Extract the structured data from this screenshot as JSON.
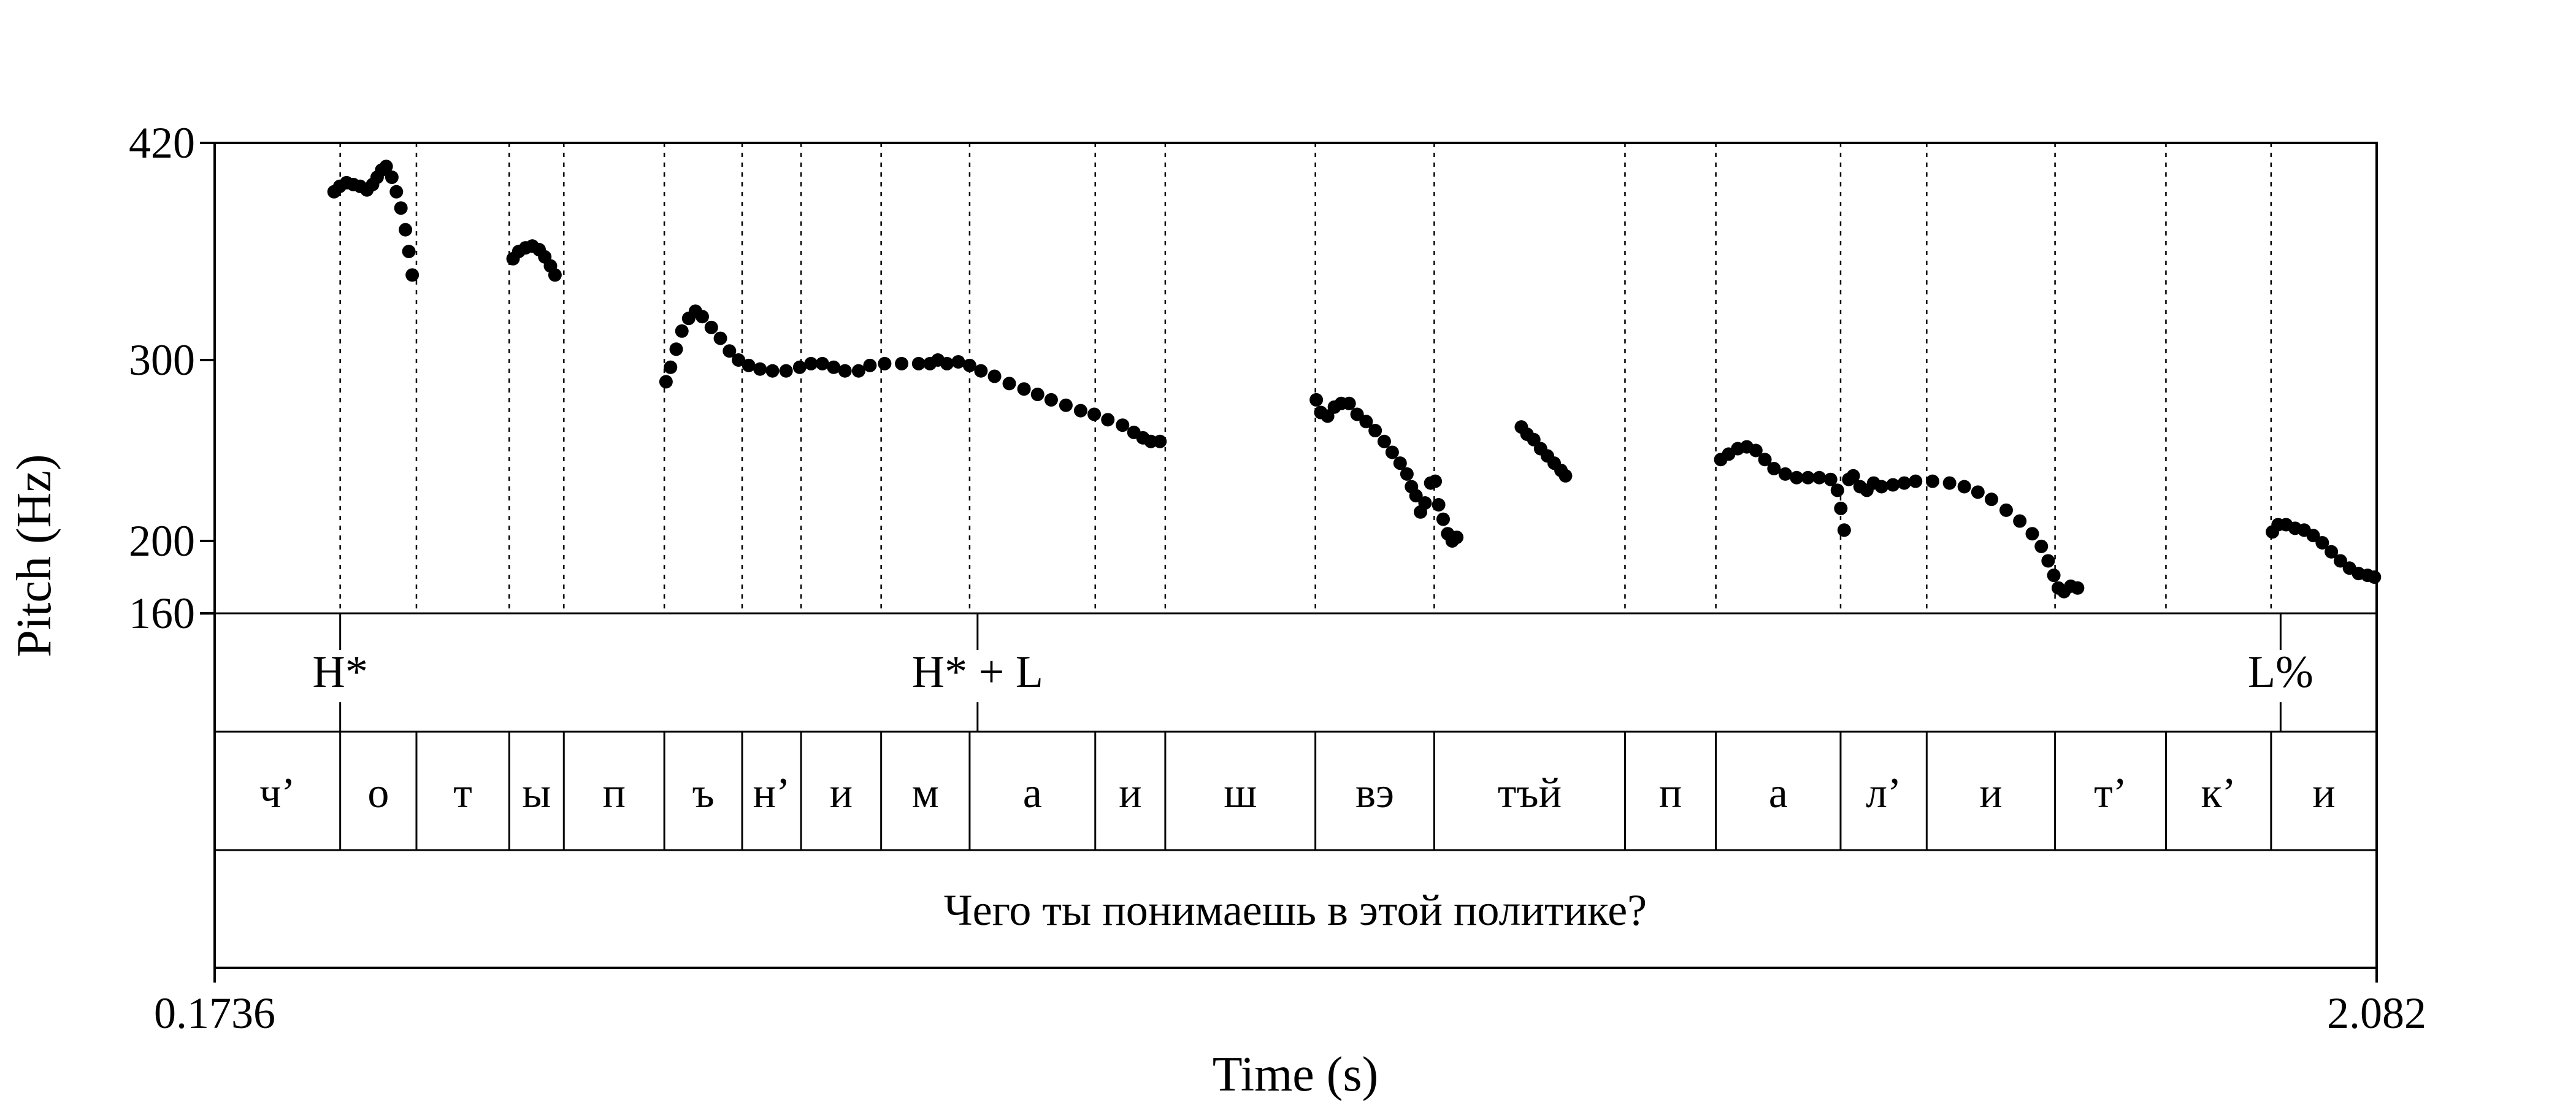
{
  "chart_data": {
    "type": "scatter",
    "xlabel": "Time (s)",
    "ylabel": "Pitch (Hz)",
    "xlim": [
      0.1736,
      2.082
    ],
    "ylim": [
      160,
      420
    ],
    "x_tick_labels": [
      "0.1736",
      "2.082"
    ],
    "y_ticks": [
      160,
      200,
      300,
      420
    ],
    "y_tick_labels": [
      "160",
      "200",
      "300",
      "420"
    ],
    "tone_tier": [
      {
        "time": 0.2844,
        "label": "H*"
      },
      {
        "time": 0.847,
        "label": "H* + L"
      },
      {
        "time": 1.9972,
        "label": "L%"
      }
    ],
    "segments": [
      {
        "start": 0.1736,
        "end": 0.2844,
        "label": "ч’"
      },
      {
        "start": 0.2844,
        "end": 0.3517,
        "label": "о"
      },
      {
        "start": 0.3517,
        "end": 0.4336,
        "label": "т"
      },
      {
        "start": 0.4336,
        "end": 0.4818,
        "label": "ы"
      },
      {
        "start": 0.4818,
        "end": 0.5705,
        "label": "п"
      },
      {
        "start": 0.5705,
        "end": 0.6392,
        "label": "ъ"
      },
      {
        "start": 0.6392,
        "end": 0.6912,
        "label": "н’"
      },
      {
        "start": 0.6912,
        "end": 0.7619,
        "label": "и"
      },
      {
        "start": 0.7619,
        "end": 0.84,
        "label": "м"
      },
      {
        "start": 0.84,
        "end": 0.9509,
        "label": "а"
      },
      {
        "start": 0.9509,
        "end": 1.0127,
        "label": "и"
      },
      {
        "start": 1.0127,
        "end": 1.1452,
        "label": "ш"
      },
      {
        "start": 1.1452,
        "end": 1.2501,
        "label": "вэ"
      },
      {
        "start": 1.2501,
        "end": 1.4185,
        "label": "тъй"
      },
      {
        "start": 1.4185,
        "end": 1.4987,
        "label": "п"
      },
      {
        "start": 1.4987,
        "end": 1.6088,
        "label": "а"
      },
      {
        "start": 1.6088,
        "end": 1.6848,
        "label": "л’"
      },
      {
        "start": 1.6848,
        "end": 1.7981,
        "label": "и"
      },
      {
        "start": 1.7981,
        "end": 1.896,
        "label": "т’"
      },
      {
        "start": 1.896,
        "end": 1.9888,
        "label": "к’"
      },
      {
        "start": 1.9888,
        "end": 2.082,
        "label": "и"
      }
    ],
    "sentence": "Чего ты понимаешь в этой политике?",
    "series": [
      {
        "points": [
          [
            0.279,
            393
          ],
          [
            0.284,
            396
          ],
          [
            0.29,
            398
          ],
          [
            0.296,
            397
          ],
          [
            0.302,
            396
          ],
          [
            0.308,
            394
          ],
          [
            0.313,
            397
          ],
          [
            0.317,
            401
          ],
          [
            0.321,
            405
          ],
          [
            0.325,
            407
          ],
          [
            0.33,
            401
          ],
          [
            0.334,
            393
          ],
          [
            0.338,
            384
          ],
          [
            0.342,
            372
          ],
          [
            0.345,
            360
          ],
          [
            0.348,
            347
          ]
        ]
      },
      {
        "points": [
          [
            0.437,
            356
          ],
          [
            0.442,
            360
          ],
          [
            0.448,
            362
          ],
          [
            0.454,
            363
          ],
          [
            0.46,
            361
          ],
          [
            0.465,
            357
          ],
          [
            0.47,
            352
          ],
          [
            0.474,
            347
          ]
        ]
      },
      {
        "points": [
          [
            0.572,
            288
          ],
          [
            0.576,
            296
          ],
          [
            0.581,
            306
          ],
          [
            0.586,
            316
          ],
          [
            0.592,
            323
          ],
          [
            0.598,
            327
          ],
          [
            0.604,
            324
          ],
          [
            0.612,
            318
          ],
          [
            0.62,
            312
          ],
          [
            0.628,
            305
          ],
          [
            0.636,
            300
          ],
          [
            0.645,
            297
          ],
          [
            0.655,
            295
          ],
          [
            0.666,
            294
          ],
          [
            0.678,
            294
          ],
          [
            0.69,
            296
          ],
          [
            0.7,
            298
          ],
          [
            0.71,
            298
          ],
          [
            0.72,
            296
          ],
          [
            0.73,
            294
          ],
          [
            0.742,
            294
          ],
          [
            0.752,
            297
          ],
          [
            0.765,
            298
          ],
          [
            0.78,
            298
          ],
          [
            0.795,
            298
          ],
          [
            0.805,
            298
          ],
          [
            0.812,
            300
          ],
          [
            0.82,
            298
          ],
          [
            0.83,
            299
          ],
          [
            0.84,
            297
          ],
          [
            0.85,
            294
          ],
          [
            0.862,
            291
          ],
          [
            0.875,
            287
          ],
          [
            0.888,
            284
          ],
          [
            0.9,
            281
          ],
          [
            0.912,
            278
          ],
          [
            0.925,
            275
          ],
          [
            0.938,
            272
          ],
          [
            0.95,
            270
          ],
          [
            0.962,
            267
          ],
          [
            0.975,
            264
          ],
          [
            0.985,
            260
          ],
          [
            0.993,
            257
          ],
          [
            1.0,
            255
          ],
          [
            1.008,
            255
          ]
        ]
      },
      {
        "points": [
          [
            1.146,
            278
          ],
          [
            1.15,
            271
          ],
          [
            1.156,
            269
          ],
          [
            1.162,
            274
          ],
          [
            1.168,
            276
          ],
          [
            1.175,
            276
          ],
          [
            1.182,
            270
          ],
          [
            1.19,
            266
          ],
          [
            1.198,
            261
          ],
          [
            1.206,
            255
          ],
          [
            1.213,
            249
          ],
          [
            1.22,
            243
          ],
          [
            1.226,
            237
          ],
          [
            1.23,
            230
          ],
          [
            1.234,
            225
          ],
          [
            1.238,
            216
          ],
          [
            1.242,
            221
          ],
          [
            1.247,
            232
          ],
          [
            1.251,
            233
          ],
          [
            1.254,
            220
          ],
          [
            1.258,
            212
          ],
          [
            1.262,
            204
          ],
          [
            1.266,
            200
          ],
          [
            1.27,
            202
          ]
        ]
      },
      {
        "points": [
          [
            1.327,
            263
          ],
          [
            1.332,
            259
          ],
          [
            1.338,
            256
          ],
          [
            1.344,
            251
          ],
          [
            1.35,
            247
          ],
          [
            1.356,
            243
          ],
          [
            1.362,
            239
          ],
          [
            1.366,
            236
          ]
        ]
      },
      {
        "points": [
          [
            1.503,
            245
          ],
          [
            1.51,
            248
          ],
          [
            1.518,
            251
          ],
          [
            1.526,
            252
          ],
          [
            1.534,
            250
          ],
          [
            1.542,
            245
          ],
          [
            1.55,
            240
          ],
          [
            1.56,
            237
          ],
          [
            1.57,
            235
          ],
          [
            1.58,
            235
          ],
          [
            1.59,
            235
          ],
          [
            1.6,
            234
          ],
          [
            1.606,
            228
          ],
          [
            1.609,
            218
          ],
          [
            1.612,
            206
          ],
          [
            1.616,
            234
          ],
          [
            1.62,
            236
          ],
          [
            1.626,
            230
          ],
          [
            1.632,
            228
          ],
          [
            1.638,
            232
          ],
          [
            1.645,
            230
          ],
          [
            1.655,
            231
          ],
          [
            1.665,
            232
          ],
          [
            1.675,
            233
          ],
          [
            1.69,
            233
          ],
          [
            1.705,
            232
          ],
          [
            1.718,
            230
          ],
          [
            1.73,
            227
          ],
          [
            1.742,
            223
          ],
          [
            1.755,
            217
          ],
          [
            1.767,
            211
          ],
          [
            1.778,
            204
          ],
          [
            1.786,
            197
          ],
          [
            1.792,
            189
          ],
          [
            1.797,
            181
          ],
          [
            1.801,
            174
          ],
          [
            1.806,
            172
          ],
          [
            1.812,
            175
          ],
          [
            1.818,
            174
          ]
        ]
      },
      {
        "points": [
          [
            1.99,
            205
          ],
          [
            1.995,
            209
          ],
          [
            2.002,
            209
          ],
          [
            2.01,
            207
          ],
          [
            2.018,
            206
          ],
          [
            2.026,
            203
          ],
          [
            2.034,
            199
          ],
          [
            2.042,
            194
          ],
          [
            2.05,
            189
          ],
          [
            2.058,
            185
          ],
          [
            2.066,
            182
          ],
          [
            2.074,
            181
          ],
          [
            2.08,
            180
          ]
        ]
      }
    ]
  }
}
